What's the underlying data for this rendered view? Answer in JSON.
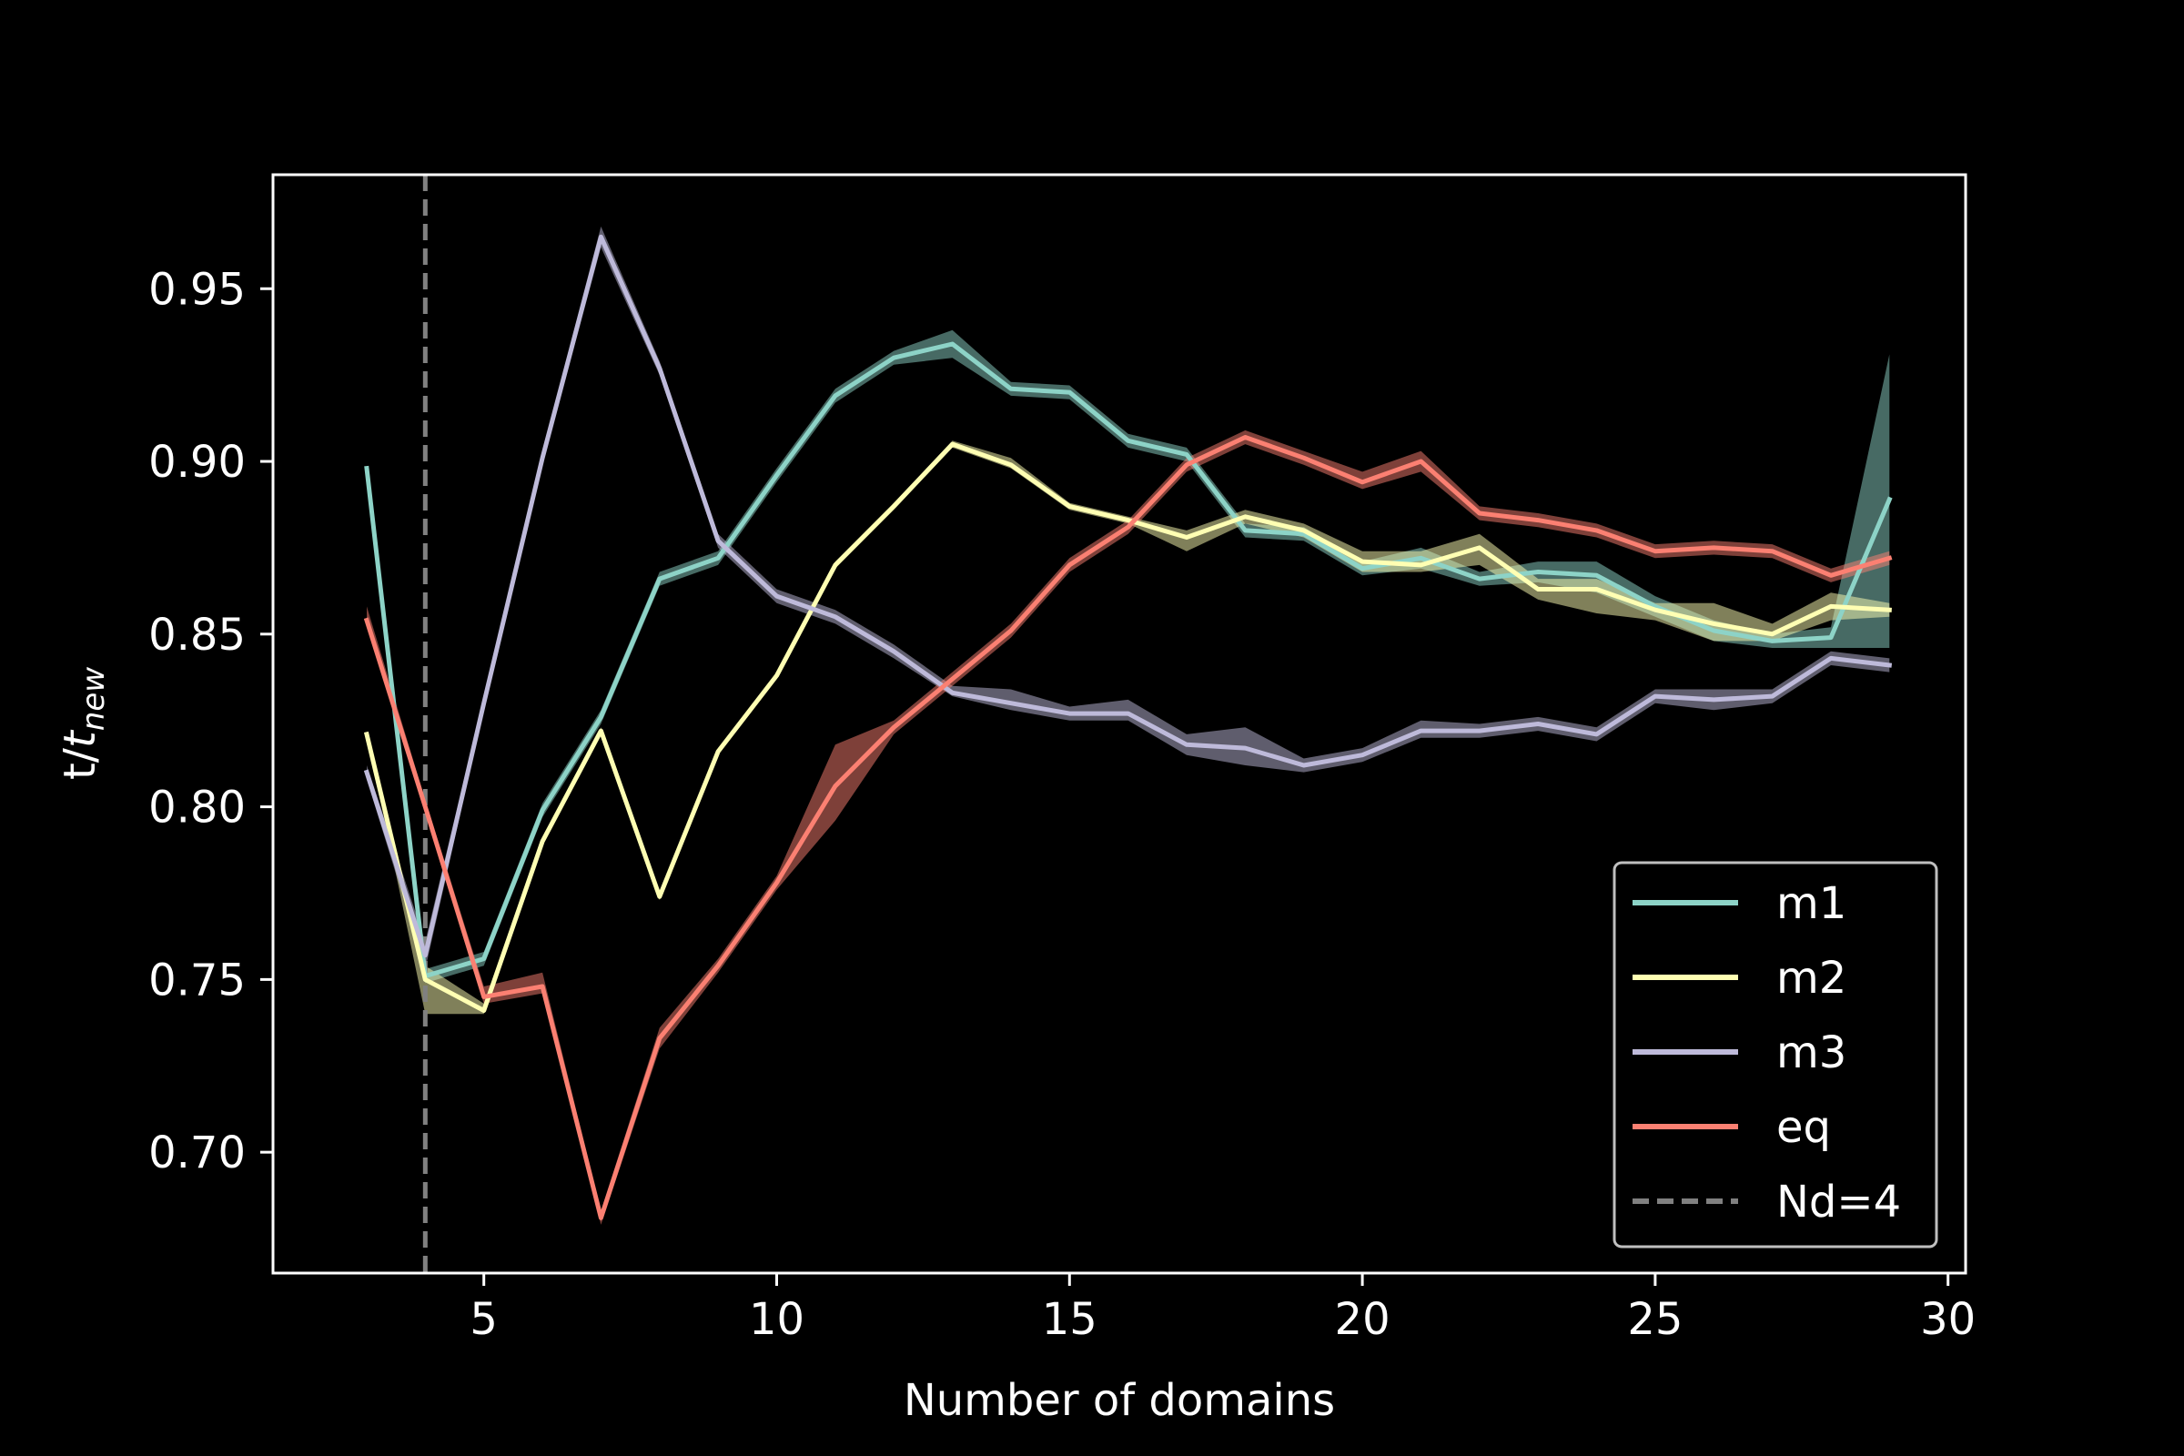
{
  "chart_data": {
    "type": "line",
    "xlabel": "Number of domains",
    "ylabel": {
      "base": "t/t",
      "subscript": "new"
    },
    "xlim": [
      1.4,
      30.3
    ],
    "ylim": [
      0.665,
      0.983
    ],
    "xticks": [
      5,
      10,
      15,
      20,
      25,
      30
    ],
    "yticks": [
      0.7,
      0.75,
      0.8,
      0.85,
      0.9,
      0.95
    ],
    "ytick_labels": [
      "0.70",
      "0.75",
      "0.80",
      "0.85",
      "0.90",
      "0.95"
    ],
    "grid": false,
    "legend_position": "lower-right",
    "background": "#000000",
    "x": [
      3,
      4,
      5,
      6,
      7,
      8,
      9,
      10,
      11,
      12,
      13,
      14,
      15,
      16,
      17,
      18,
      19,
      20,
      21,
      22,
      23,
      24,
      25,
      26,
      27,
      28,
      29
    ],
    "series": [
      {
        "name": "m1",
        "color": "#8dd3c7",
        "values": [
          0.898,
          0.751,
          0.756,
          0.799,
          0.826,
          0.866,
          0.872,
          0.896,
          0.919,
          0.93,
          0.934,
          0.921,
          0.92,
          0.906,
          0.902,
          0.88,
          0.879,
          0.869,
          0.872,
          0.866,
          0.868,
          0.867,
          0.858,
          0.851,
          0.848,
          0.849,
          0.889
        ],
        "lower": [
          0.898,
          0.749,
          0.754,
          0.797,
          0.824,
          0.864,
          0.87,
          0.894,
          0.917,
          0.928,
          0.93,
          0.919,
          0.918,
          0.904,
          0.9,
          0.878,
          0.877,
          0.867,
          0.869,
          0.864,
          0.865,
          0.862,
          0.855,
          0.848,
          0.846,
          0.846,
          0.846
        ],
        "upper": [
          0.898,
          0.753,
          0.758,
          0.801,
          0.828,
          0.868,
          0.874,
          0.898,
          0.921,
          0.932,
          0.938,
          0.923,
          0.922,
          0.908,
          0.904,
          0.882,
          0.881,
          0.871,
          0.875,
          0.868,
          0.871,
          0.871,
          0.861,
          0.854,
          0.85,
          0.852,
          0.931
        ]
      },
      {
        "name": "m2",
        "color": "#ffffb3",
        "values": [
          0.821,
          0.75,
          0.741,
          0.79,
          0.822,
          0.774,
          0.816,
          0.838,
          0.87,
          0.887,
          0.905,
          0.899,
          0.887,
          0.883,
          0.878,
          0.884,
          0.88,
          0.871,
          0.87,
          0.875,
          0.863,
          0.863,
          0.857,
          0.853,
          0.85,
          0.858,
          0.857
        ],
        "lower": [
          0.821,
          0.74,
          0.74,
          0.789,
          0.821,
          0.773,
          0.815,
          0.837,
          0.869,
          0.886,
          0.904,
          0.898,
          0.886,
          0.882,
          0.874,
          0.882,
          0.878,
          0.868,
          0.868,
          0.87,
          0.86,
          0.856,
          0.854,
          0.848,
          0.848,
          0.854,
          0.855
        ],
        "upper": [
          0.821,
          0.754,
          0.743,
          0.791,
          0.823,
          0.775,
          0.817,
          0.839,
          0.871,
          0.888,
          0.906,
          0.901,
          0.888,
          0.884,
          0.88,
          0.886,
          0.882,
          0.874,
          0.874,
          0.879,
          0.866,
          0.866,
          0.859,
          0.859,
          0.853,
          0.862,
          0.859
        ]
      },
      {
        "name": "m3",
        "color": "#bebada",
        "values": [
          0.81,
          0.757,
          0.83,
          0.901,
          0.965,
          0.927,
          0.877,
          0.861,
          0.855,
          0.845,
          0.833,
          0.83,
          0.827,
          0.827,
          0.818,
          0.817,
          0.812,
          0.815,
          0.822,
          0.822,
          0.824,
          0.821,
          0.832,
          0.831,
          0.832,
          0.843,
          0.841
        ],
        "lower": [
          0.808,
          0.753,
          0.828,
          0.899,
          0.962,
          0.925,
          0.875,
          0.859,
          0.853,
          0.843,
          0.832,
          0.828,
          0.825,
          0.825,
          0.815,
          0.812,
          0.81,
          0.813,
          0.82,
          0.82,
          0.822,
          0.819,
          0.83,
          0.828,
          0.83,
          0.841,
          0.839
        ],
        "upper": [
          0.812,
          0.761,
          0.832,
          0.903,
          0.968,
          0.929,
          0.879,
          0.863,
          0.857,
          0.847,
          0.835,
          0.834,
          0.829,
          0.831,
          0.821,
          0.823,
          0.814,
          0.817,
          0.825,
          0.824,
          0.826,
          0.823,
          0.834,
          0.834,
          0.834,
          0.845,
          0.843
        ]
      },
      {
        "name": "eq",
        "color": "#fb8072",
        "values": [
          0.854,
          0.8,
          0.745,
          0.748,
          0.681,
          0.733,
          0.754,
          0.778,
          0.806,
          0.823,
          0.837,
          0.851,
          0.87,
          0.881,
          0.899,
          0.907,
          0.901,
          0.894,
          0.9,
          0.885,
          0.883,
          0.88,
          0.874,
          0.875,
          0.874,
          0.867,
          0.872
        ],
        "lower": [
          0.852,
          0.798,
          0.743,
          0.746,
          0.679,
          0.73,
          0.752,
          0.776,
          0.796,
          0.821,
          0.835,
          0.849,
          0.868,
          0.879,
          0.897,
          0.905,
          0.899,
          0.892,
          0.897,
          0.883,
          0.881,
          0.878,
          0.872,
          0.873,
          0.872,
          0.865,
          0.87
        ],
        "upper": [
          0.858,
          0.802,
          0.748,
          0.752,
          0.683,
          0.736,
          0.756,
          0.78,
          0.818,
          0.825,
          0.839,
          0.853,
          0.872,
          0.883,
          0.901,
          0.909,
          0.903,
          0.897,
          0.903,
          0.887,
          0.885,
          0.882,
          0.876,
          0.877,
          0.876,
          0.869,
          0.874
        ]
      }
    ],
    "reference_lines": [
      {
        "name": "Nd=4",
        "x": 4,
        "color": "#808080",
        "style": "dashed"
      }
    ],
    "legend": [
      {
        "label": "m1",
        "color": "#8dd3c7",
        "style": "solid"
      },
      {
        "label": "m2",
        "color": "#ffffb3",
        "style": "solid"
      },
      {
        "label": "m3",
        "color": "#bebada",
        "style": "solid"
      },
      {
        "label": "eq",
        "color": "#fb8072",
        "style": "solid"
      },
      {
        "label": "Nd=4",
        "color": "#808080",
        "style": "dashed"
      }
    ]
  }
}
